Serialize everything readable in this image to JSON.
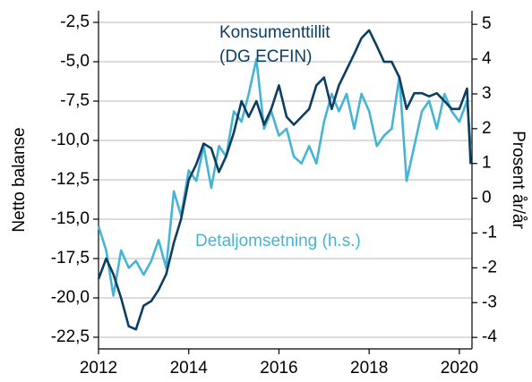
{
  "chart_data": {
    "type": "line",
    "ylabel": "Netto balanse",
    "y2label": "Prosent år/år",
    "annotations": [
      "Konsumenttillit",
      "(DG ECFIN)",
      "Detaljomsetning (h.s.)"
    ],
    "x": [
      2012,
      2012.17,
      2012.33,
      2012.5,
      2012.67,
      2012.83,
      2013,
      2013.17,
      2013.33,
      2013.5,
      2013.67,
      2013.83,
      2014,
      2014.17,
      2014.33,
      2014.5,
      2014.67,
      2014.83,
      2015,
      2015.17,
      2015.33,
      2015.5,
      2015.67,
      2015.83,
      2016,
      2016.17,
      2016.33,
      2016.5,
      2016.67,
      2016.83,
      2017,
      2017.17,
      2017.33,
      2017.5,
      2017.67,
      2017.83,
      2018,
      2018.17,
      2018.33,
      2018.5,
      2018.67,
      2018.83,
      2019,
      2019.17,
      2019.33,
      2019.5,
      2019.67,
      2019.83,
      2020,
      2020.17,
      2020.25
    ],
    "series": [
      {
        "name": "Konsumenttillit (DG ECFIN)",
        "color": "#0d3e62",
        "axis": "y",
        "values": [
          -18.8,
          -17.5,
          -18.5,
          -20,
          -21.8,
          -22,
          -20.5,
          -20.2,
          -19.5,
          -18.5,
          -16.5,
          -15,
          -12.5,
          -11.5,
          -10.2,
          -10.5,
          -12,
          -11,
          -9.5,
          -7.5,
          -8.5,
          -7.5,
          -9,
          -8,
          -6.5,
          -8.5,
          -9,
          -8.5,
          -8,
          -6.5,
          -6,
          -8,
          -6.5,
          -5.5,
          -4.5,
          -3.5,
          -3,
          -4,
          -5,
          -5,
          -6,
          -8,
          -7,
          -7,
          -7.2,
          -7,
          -7.5,
          -8,
          -8,
          -6.7,
          -11.5
        ]
      },
      {
        "name": "Detaljomsetning (h.s.)",
        "color": "#45b4d5",
        "axis": "y2",
        "values": [
          -0.8,
          -1.5,
          -2.8,
          -1.5,
          -2,
          -1.8,
          -2.2,
          -1.8,
          -1.2,
          -2,
          0.2,
          -0.5,
          0.8,
          0.5,
          1.5,
          0.3,
          1.5,
          1.2,
          2.5,
          2.2,
          3,
          4,
          2,
          2.5,
          1.8,
          2,
          1.2,
          1,
          1.5,
          1,
          2.2,
          3,
          2.5,
          3,
          2,
          3,
          2.5,
          1.5,
          1.8,
          2,
          3.5,
          0.5,
          1.5,
          2.5,
          2.8,
          2,
          3,
          2.5,
          2.2,
          2.8,
          1.5
        ]
      }
    ],
    "xlim": [
      2012,
      2020.28
    ],
    "xticks": [
      2012,
      2014,
      2016,
      2018,
      2020
    ],
    "ylim": [
      -23.24,
      -1.76
    ],
    "yticks": [
      {
        "value": -2.5,
        "label": "-2,5"
      },
      {
        "value": -5,
        "label": "-5,0"
      },
      {
        "value": -7.5,
        "label": "-7,5"
      },
      {
        "value": -10,
        "label": "-10,0"
      },
      {
        "value": -12.5,
        "label": "-12,5"
      },
      {
        "value": -15,
        "label": "-15,0"
      },
      {
        "value": -17.5,
        "label": "-17,5"
      },
      {
        "value": -20,
        "label": "-20,0"
      },
      {
        "value": -22.5,
        "label": "-22,5"
      }
    ],
    "y2lim": [
      -4.33,
      5.39
    ],
    "y2ticks": [
      5,
      4,
      3,
      2,
      1,
      0,
      -1,
      -2,
      -3,
      -4
    ],
    "grid": true
  }
}
